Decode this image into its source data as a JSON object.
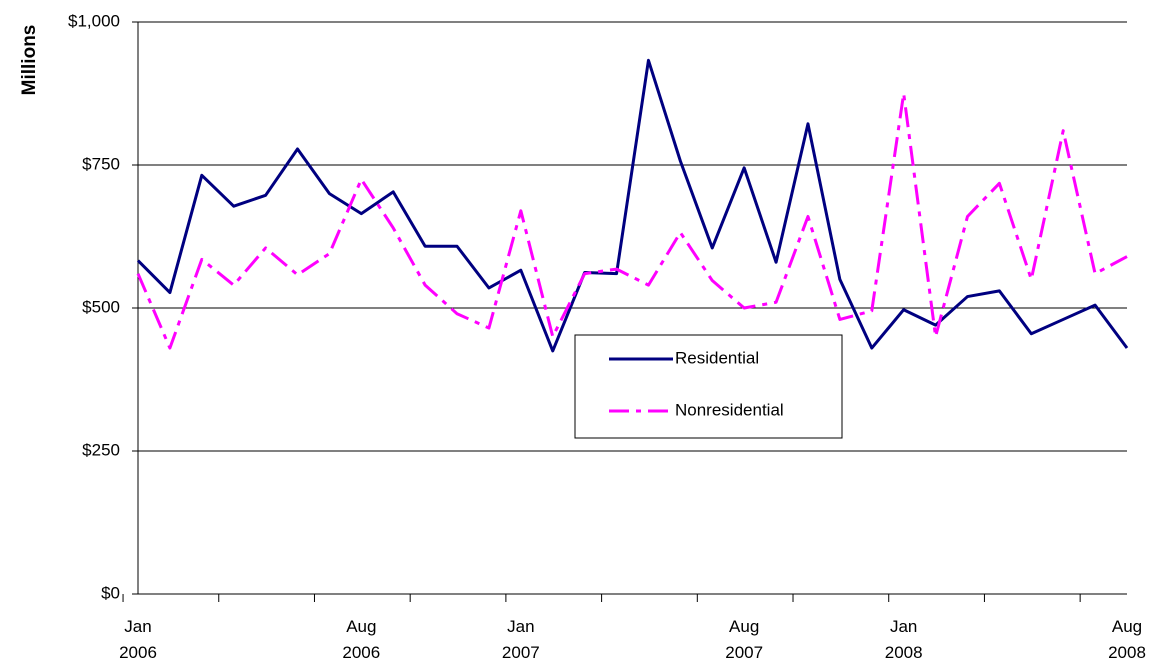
{
  "chart_data": {
    "type": "line",
    "y_label": "Millions",
    "categories": [
      "Jan 2006",
      null,
      null,
      null,
      null,
      null,
      null,
      "Aug 2006",
      null,
      null,
      null,
      null,
      "Jan 2007",
      null,
      null,
      null,
      null,
      null,
      null,
      "Aug 2007",
      null,
      null,
      null,
      null,
      "Jan 2008",
      null,
      null,
      null,
      null,
      null,
      null,
      "Aug 2008"
    ],
    "series": [
      {
        "name": "Residential",
        "color": "#000080",
        "dash": "solid",
        "values": [
          583,
          527,
          732,
          678,
          697,
          778,
          700,
          665,
          703,
          608,
          608,
          535,
          566,
          425,
          562,
          560,
          933,
          757,
          605,
          745,
          580,
          822,
          550,
          430,
          497,
          470,
          520,
          530,
          455,
          480,
          505,
          430
        ]
      },
      {
        "name": "Nonresidential",
        "color": "#ff00ff",
        "dash": "dashdot",
        "values": [
          560,
          430,
          585,
          540,
          605,
          558,
          595,
          725,
          640,
          540,
          490,
          465,
          670,
          450,
          560,
          568,
          540,
          632,
          548,
          500,
          510,
          660,
          480,
          495,
          875,
          450,
          660,
          718,
          550,
          810,
          560,
          590
        ]
      }
    ],
    "ylim": [
      0,
      1000
    ],
    "yticks": [
      {
        "value": 0,
        "label": "$0"
      },
      {
        "value": 250,
        "label": "$250"
      },
      {
        "value": 500,
        "label": "$500"
      },
      {
        "value": 750,
        "label": "$750"
      },
      {
        "value": 1000,
        "label": "$1,000"
      }
    ],
    "grid": true,
    "legend_position": "center"
  }
}
